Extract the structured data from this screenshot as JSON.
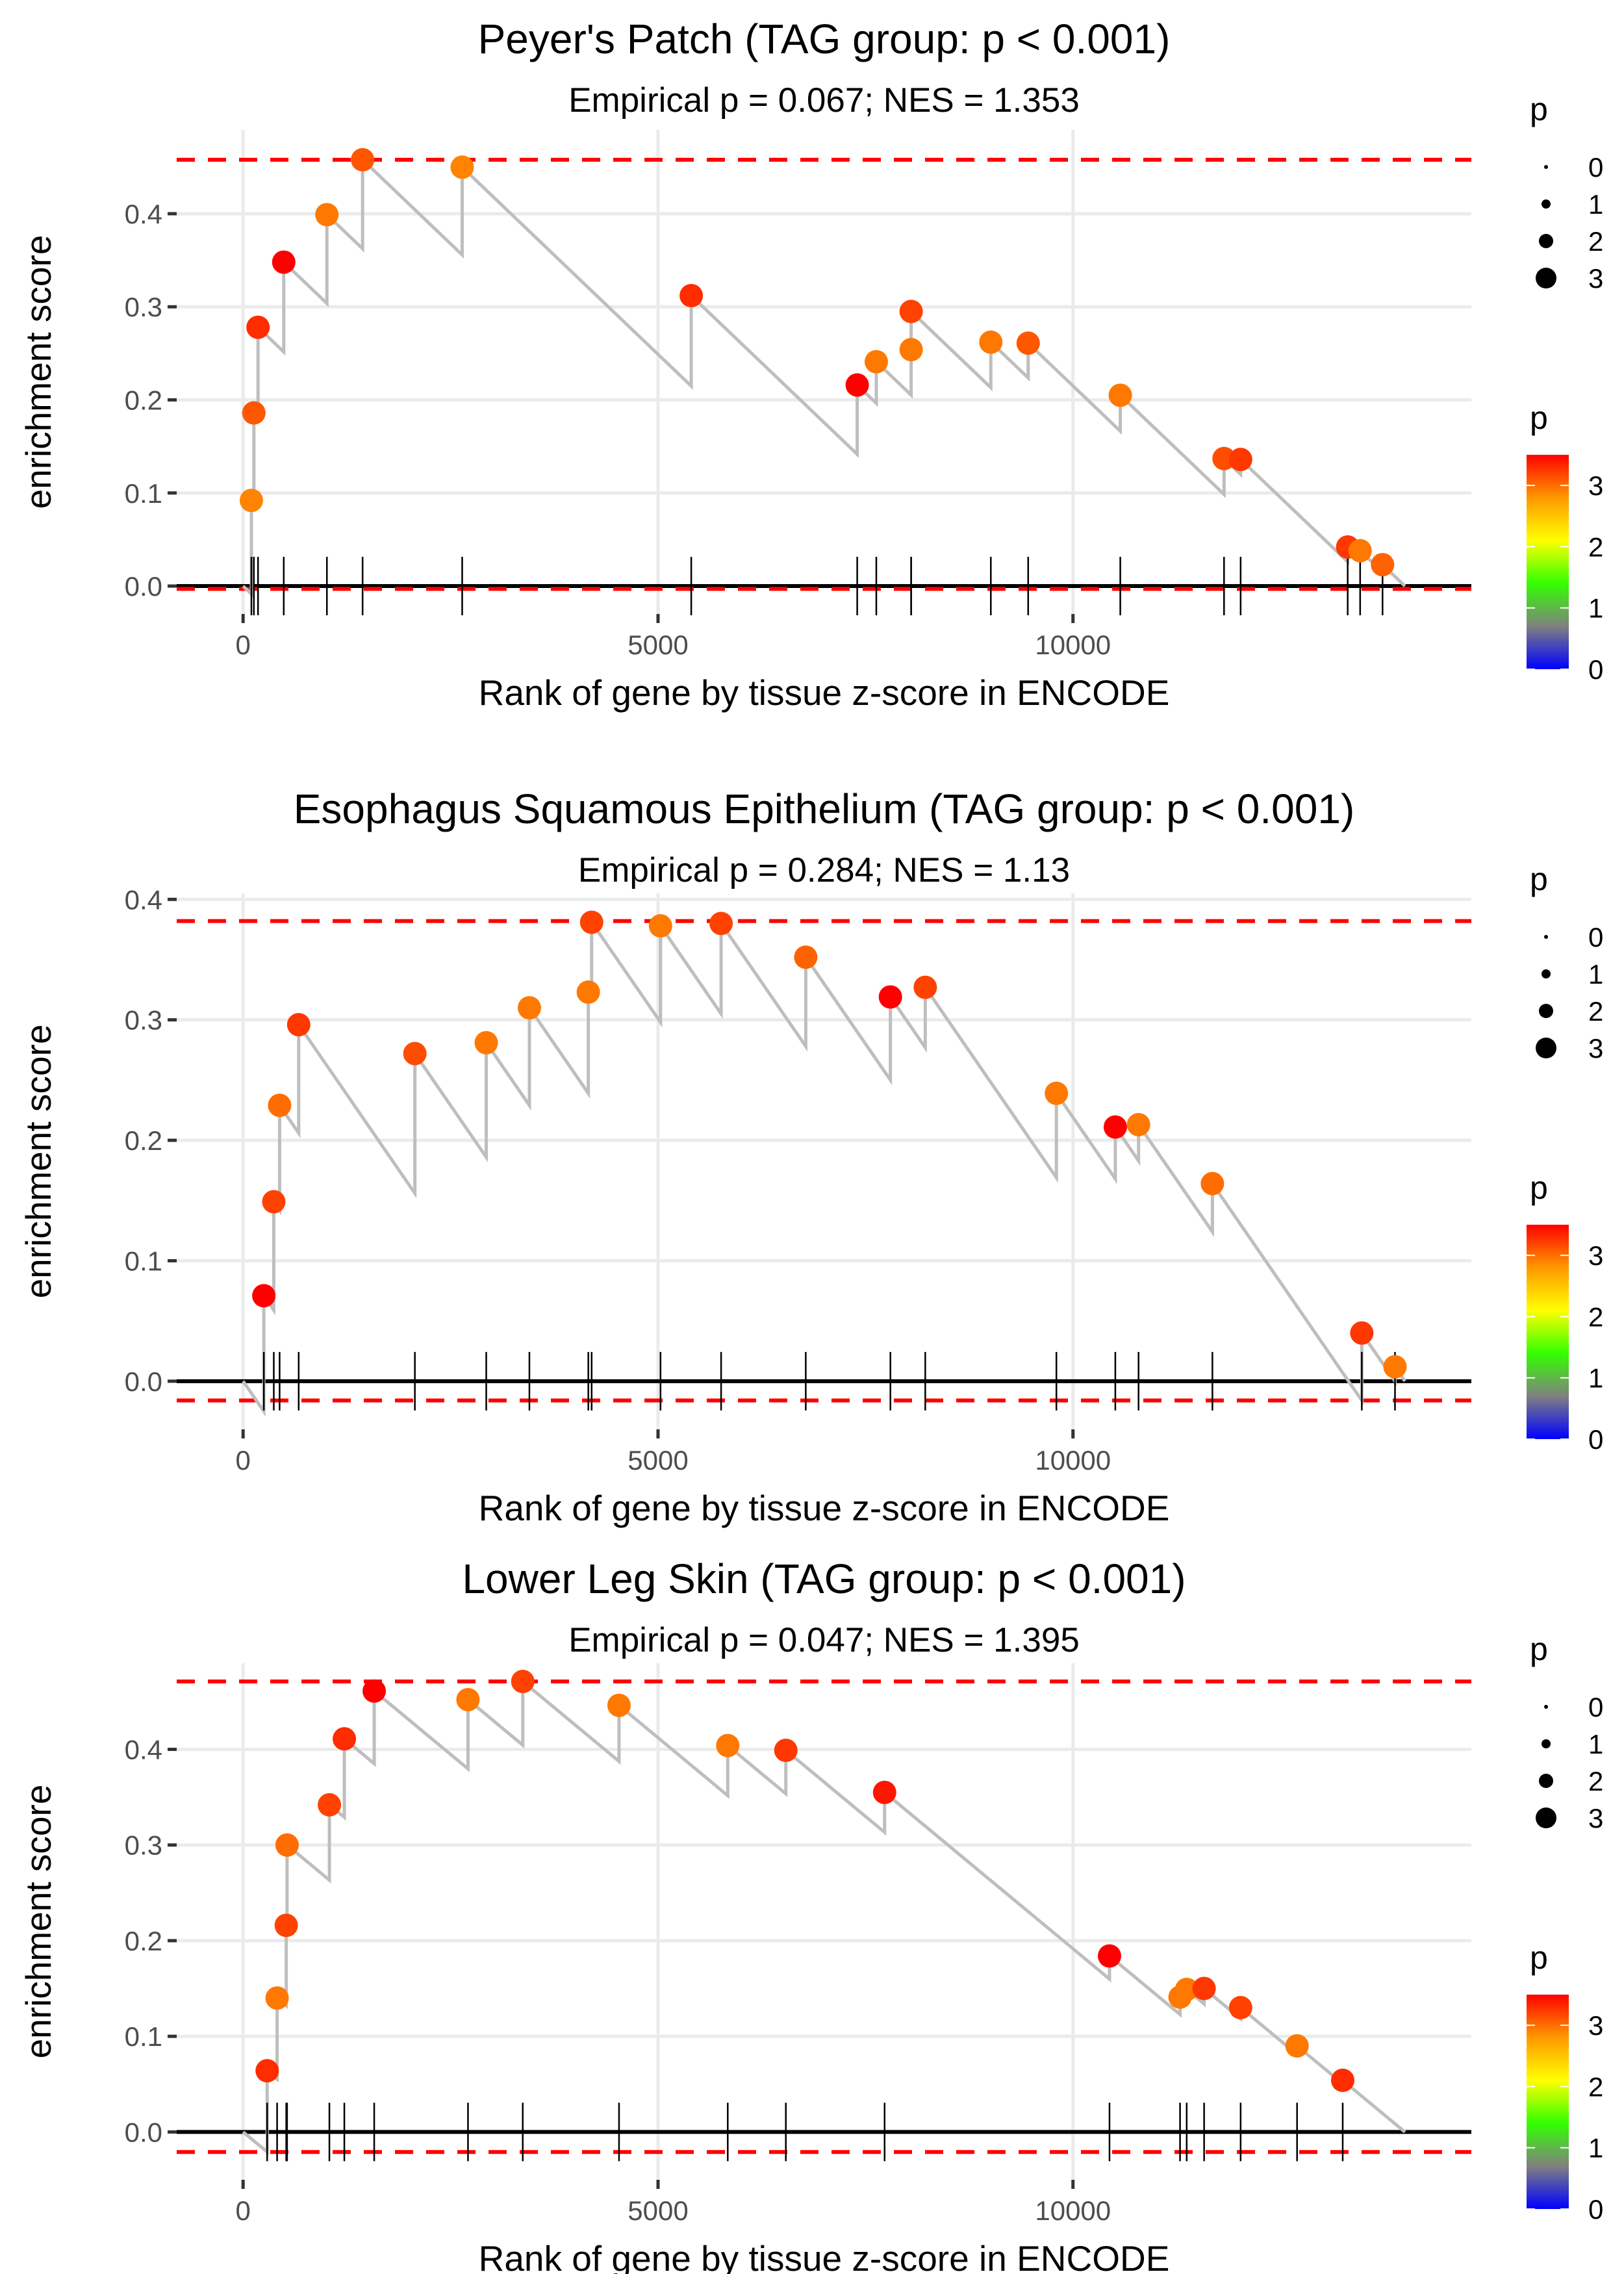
{
  "chart_data": [
    {
      "type": "scatter",
      "title": "Peyer's Patch (TAG group: p < 0.001)",
      "subtitle": "Empirical p = 0.067; NES = 1.353",
      "xlabel": "Rank of gene by tissue z-score in ENCODE",
      "ylabel": "enrichment score",
      "xlim": [
        -800,
        14800
      ],
      "ylim": [
        -0.03,
        0.49
      ],
      "xticks": [
        0,
        5000,
        10000
      ],
      "xtick_labels": [
        "0",
        "5000",
        "10000"
      ],
      "yticks": [
        0.0,
        0.1,
        0.2,
        0.3,
        0.4
      ],
      "ytick_labels": [
        "0.0",
        "0.1",
        "0.2",
        "0.3",
        "0.4"
      ],
      "max_es_line": 0.458,
      "min_es_line": -0.003,
      "end_x": 14000,
      "points": [
        {
          "x": 100,
          "y": 0.092,
          "p": 2.9
        },
        {
          "x": 130,
          "y": 0.186,
          "p": 3.1
        },
        {
          "x": 180,
          "y": 0.278,
          "p": 3.3
        },
        {
          "x": 490,
          "y": 0.348,
          "p": 3.6
        },
        {
          "x": 1010,
          "y": 0.399,
          "p": 2.95
        },
        {
          "x": 1440,
          "y": 0.458,
          "p": 3.1
        },
        {
          "x": 2640,
          "y": 0.45,
          "p": 2.9
        },
        {
          "x": 5400,
          "y": 0.312,
          "p": 3.3
        },
        {
          "x": 7400,
          "y": 0.216,
          "p": 3.55
        },
        {
          "x": 7630,
          "y": 0.241,
          "p": 2.95
        },
        {
          "x": 8050,
          "y": 0.254,
          "p": 2.95
        },
        {
          "x": 8050,
          "y": 0.295,
          "p": 3.2
        },
        {
          "x": 9010,
          "y": 0.262,
          "p": 2.95
        },
        {
          "x": 9460,
          "y": 0.261,
          "p": 3.1
        },
        {
          "x": 10570,
          "y": 0.205,
          "p": 2.95
        },
        {
          "x": 11820,
          "y": 0.137,
          "p": 3.15
        },
        {
          "x": 12020,
          "y": 0.136,
          "p": 3.25
        },
        {
          "x": 13310,
          "y": 0.042,
          "p": 3.25
        },
        {
          "x": 13460,
          "y": 0.038,
          "p": 2.95
        },
        {
          "x": 13730,
          "y": 0.023,
          "p": 3.05
        }
      ]
    },
    {
      "type": "scatter",
      "title": "Esophagus Squamous Epithelium (TAG group: p < 0.001)",
      "subtitle": "Empirical p = 0.284; NES = 1.13",
      "xlabel": "Rank of gene by tissue z-score in ENCODE",
      "ylabel": "enrichment score",
      "xlim": [
        -800,
        14800
      ],
      "ylim": [
        -0.04,
        0.405
      ],
      "xticks": [
        0,
        5000,
        10000
      ],
      "xtick_labels": [
        "0",
        "5000",
        "10000"
      ],
      "yticks": [
        0.0,
        0.1,
        0.2,
        0.3,
        0.4
      ],
      "ytick_labels": [
        "0.0",
        "0.1",
        "0.2",
        "0.3",
        "0.4"
      ],
      "max_es_line": 0.382,
      "min_es_line": -0.016,
      "end_x": 14000,
      "points": [
        {
          "x": 250,
          "y": 0.071,
          "p": 3.55
        },
        {
          "x": 370,
          "y": 0.149,
          "p": 3.2
        },
        {
          "x": 440,
          "y": 0.229,
          "p": 3.0
        },
        {
          "x": 670,
          "y": 0.296,
          "p": 3.25
        },
        {
          "x": 2070,
          "y": 0.272,
          "p": 3.15
        },
        {
          "x": 2930,
          "y": 0.281,
          "p": 2.95
        },
        {
          "x": 3450,
          "y": 0.31,
          "p": 2.95
        },
        {
          "x": 4160,
          "y": 0.323,
          "p": 2.95
        },
        {
          "x": 4200,
          "y": 0.381,
          "p": 3.2
        },
        {
          "x": 5030,
          "y": 0.378,
          "p": 2.95
        },
        {
          "x": 5760,
          "y": 0.38,
          "p": 3.2
        },
        {
          "x": 6780,
          "y": 0.352,
          "p": 3.05
        },
        {
          "x": 7800,
          "y": 0.319,
          "p": 3.55
        },
        {
          "x": 8220,
          "y": 0.327,
          "p": 3.2
        },
        {
          "x": 9800,
          "y": 0.239,
          "p": 2.95
        },
        {
          "x": 10510,
          "y": 0.211,
          "p": 3.55
        },
        {
          "x": 10790,
          "y": 0.213,
          "p": 2.95
        },
        {
          "x": 11680,
          "y": 0.164,
          "p": 3.0
        },
        {
          "x": 13480,
          "y": 0.04,
          "p": 3.25
        },
        {
          "x": 13880,
          "y": 0.012,
          "p": 2.95
        }
      ]
    },
    {
      "type": "scatter",
      "title": "Lower Leg Skin (TAG group: p < 0.001)",
      "subtitle": "Empirical p = 0.047; NES = 1.395",
      "xlabel": "Rank of gene by tissue z-score in ENCODE",
      "ylabel": "enrichment score",
      "xlim": [
        -800,
        14800
      ],
      "ylim": [
        -0.05,
        0.49
      ],
      "xticks": [
        0,
        5000,
        10000
      ],
      "xtick_labels": [
        "0",
        "5000",
        "10000"
      ],
      "yticks": [
        0.0,
        0.1,
        0.2,
        0.3,
        0.4
      ],
      "ytick_labels": [
        "0.0",
        "0.1",
        "0.2",
        "0.3",
        "0.4"
      ],
      "max_es_line": 0.471,
      "min_es_line": -0.021,
      "end_x": 14000,
      "points": [
        {
          "x": 290,
          "y": 0.064,
          "p": 3.3
        },
        {
          "x": 410,
          "y": 0.14,
          "p": 2.95
        },
        {
          "x": 520,
          "y": 0.216,
          "p": 3.2
        },
        {
          "x": 530,
          "y": 0.3,
          "p": 3.0
        },
        {
          "x": 1040,
          "y": 0.342,
          "p": 3.2
        },
        {
          "x": 1220,
          "y": 0.411,
          "p": 3.3
        },
        {
          "x": 1580,
          "y": 0.461,
          "p": 3.6
        },
        {
          "x": 2710,
          "y": 0.452,
          "p": 2.95
        },
        {
          "x": 3370,
          "y": 0.471,
          "p": 3.2
        },
        {
          "x": 4530,
          "y": 0.446,
          "p": 2.95
        },
        {
          "x": 5840,
          "y": 0.404,
          "p": 2.95
        },
        {
          "x": 6540,
          "y": 0.399,
          "p": 3.25
        },
        {
          "x": 7730,
          "y": 0.355,
          "p": 3.4
        },
        {
          "x": 10440,
          "y": 0.184,
          "p": 3.55
        },
        {
          "x": 11290,
          "y": 0.141,
          "p": 2.95
        },
        {
          "x": 11370,
          "y": 0.149,
          "p": 2.95
        },
        {
          "x": 11580,
          "y": 0.15,
          "p": 3.25
        },
        {
          "x": 12020,
          "y": 0.13,
          "p": 3.2
        },
        {
          "x": 12700,
          "y": 0.09,
          "p": 2.95
        },
        {
          "x": 13250,
          "y": 0.054,
          "p": 3.3
        }
      ]
    }
  ],
  "legend": {
    "size_title": "p",
    "size_labels": [
      "0",
      "1",
      "2",
      "3"
    ],
    "color_title": "p",
    "color_labels": [
      "3",
      "2",
      "1",
      "0"
    ],
    "color_range": [
      0,
      3.5
    ],
    "color_stops": [
      "#0000ff",
      "#808080",
      "#33ff00",
      "#ffff00",
      "#ff9900",
      "#ff0000"
    ]
  },
  "colors": {
    "line": "#bebebe",
    "dashed_es": "#ff0000",
    "grid": "#ebebeb",
    "zero_line": "#000000"
  }
}
